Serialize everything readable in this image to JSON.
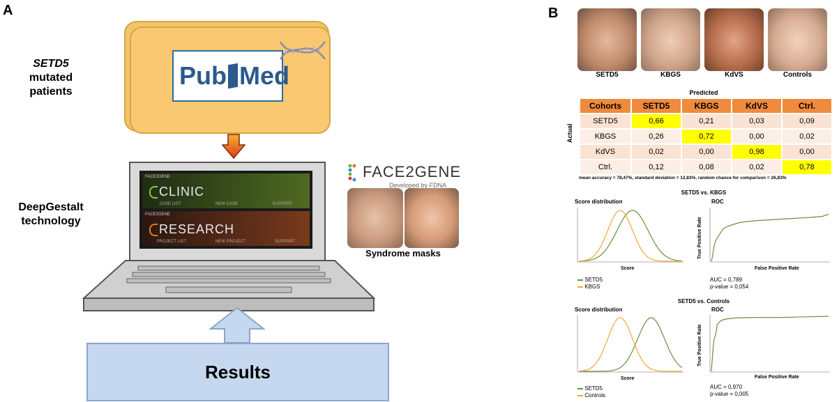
{
  "panel_a": {
    "letter": "A",
    "label_setd5_gene": "SETD5",
    "label_setd5_rest": "mutated patients",
    "label_deepgestalt": "DeepGestalt technology",
    "pubmed_left": "Pub",
    "pubmed_right": "Med",
    "screen": {
      "clinic_small": "FACE2GENE",
      "clinic_title": "CLINIC",
      "clinic_menu": [
        "CASE LIST",
        "NEW CASE",
        "SUPPORT"
      ],
      "research_small": "FACE2GENE",
      "research_title": "RESEARCH",
      "research_menu": [
        "PROJECT LIST",
        "NEW PROJECT",
        "SUPPORT"
      ]
    },
    "face2gene_logo": "FACE2GENE",
    "developed_by": "Developed by FDNA",
    "syndrome_masks": "Syndrome masks",
    "results": "Results"
  },
  "panel_b": {
    "letter": "B",
    "faces": [
      "SETD5",
      "KBGS",
      "KdVS",
      "Controls"
    ],
    "predicted_label": "Predicted",
    "actual_label": "Actual",
    "headers": [
      "Cohorts",
      "SETD5",
      "KBGS",
      "KdVS",
      "Ctrl."
    ],
    "rows": [
      {
        "name": "SETD5",
        "values": [
          "0,66",
          "0,21",
          "0,03",
          "0,09"
        ],
        "highlight": 0
      },
      {
        "name": "KBGS",
        "values": [
          "0,26",
          "0,72",
          "0,00",
          "0,02"
        ],
        "highlight": 1
      },
      {
        "name": "KdVS",
        "values": [
          "0,02",
          "0,00",
          "0,98",
          "0,00"
        ],
        "highlight": 2
      },
      {
        "name": "Ctrl.",
        "values": [
          "0,12",
          "0,08",
          "0,02",
          "0,78"
        ],
        "highlight": 3
      }
    ],
    "accuracy_note": "mean accuracy = 78,47%, standard deviation = 12,83%, random chance for comparison = 26,83%",
    "colors": {
      "series_a": "#6b8e3e",
      "series_b": "#f0a830",
      "highlight": "#ffff00",
      "header": "#f08a3c"
    }
  },
  "chart_data": [
    {
      "type": "line",
      "title": "SETD5 vs. KBGS",
      "subtitle": "Score distribution",
      "xlabel": "Score",
      "series": [
        {
          "name": "SETD5",
          "shape": "gaussian",
          "mean": 0.52,
          "sd": 0.15
        },
        {
          "name": "KBGS",
          "shape": "gaussian",
          "mean": 0.4,
          "sd": 0.12
        }
      ]
    },
    {
      "type": "line",
      "title": "ROC",
      "xlabel": "False Positive Rate",
      "ylabel": "True Positive Rate",
      "x": [
        0,
        0.01,
        0.02,
        0.03,
        0.05,
        0.08,
        0.1,
        0.13,
        0.18,
        0.24,
        0.3,
        0.4,
        0.55,
        0.7,
        0.85,
        0.95,
        1.0
      ],
      "y": [
        0,
        0.1,
        0.25,
        0.35,
        0.45,
        0.55,
        0.62,
        0.66,
        0.7,
        0.74,
        0.76,
        0.78,
        0.8,
        0.82,
        0.84,
        0.86,
        0.9
      ],
      "auc": "AUC = 0,789",
      "pvalue": "p-value = 0,054"
    },
    {
      "type": "line",
      "title": "SETD5 vs. Controls",
      "subtitle": "Score distribution",
      "xlabel": "Score",
      "series": [
        {
          "name": "SETD5",
          "shape": "gaussian",
          "mean": 0.7,
          "sd": 0.13
        },
        {
          "name": "Controls",
          "shape": "gaussian",
          "mean": 0.4,
          "sd": 0.12
        }
      ]
    },
    {
      "type": "line",
      "title": "ROC",
      "xlabel": "False Positive Rate",
      "ylabel": "True Positive Rate",
      "x": [
        0,
        0.01,
        0.02,
        0.04,
        0.05,
        0.08,
        0.12,
        0.2,
        0.4,
        0.6,
        0.8,
        1.0
      ],
      "y": [
        0,
        0.3,
        0.55,
        0.7,
        0.85,
        0.92,
        0.95,
        0.97,
        0.98,
        0.98,
        0.99,
        1.0
      ],
      "auc": "AUC = 0,970",
      "pvalue": "p-value = 0,005"
    }
  ]
}
